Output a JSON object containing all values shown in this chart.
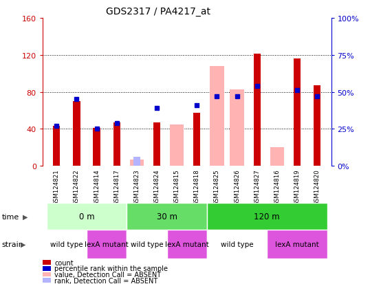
{
  "title": "GDS2317 / PA4217_at",
  "samples": [
    "GSM124821",
    "GSM124822",
    "GSM124814",
    "GSM124817",
    "GSM124823",
    "GSM124824",
    "GSM124815",
    "GSM124818",
    "GSM124825",
    "GSM124826",
    "GSM124827",
    "GSM124816",
    "GSM124819",
    "GSM124820"
  ],
  "count_values": [
    43,
    70,
    41,
    47,
    null,
    47,
    null,
    57,
    null,
    null,
    121,
    null,
    116,
    87
  ],
  "percentile_values": [
    27,
    45,
    25,
    29,
    null,
    39,
    null,
    41,
    47,
    47,
    54,
    null,
    51,
    47
  ],
  "absent_value_values": [
    null,
    null,
    null,
    null,
    7,
    null,
    45,
    null,
    108,
    83,
    null,
    20,
    null,
    null
  ],
  "absent_rank_values": [
    null,
    null,
    null,
    null,
    10,
    null,
    null,
    null,
    null,
    null,
    null,
    null,
    null,
    null
  ],
  "ylim_left": [
    0,
    160
  ],
  "ylim_right": [
    0,
    100
  ],
  "yticks_left": [
    0,
    40,
    80,
    120,
    160
  ],
  "yticks_left_labels": [
    "0",
    "40",
    "80",
    "120",
    "160"
  ],
  "yticks_right": [
    0,
    25,
    50,
    75,
    100
  ],
  "yticks_right_labels": [
    "0%",
    "25%",
    "50%",
    "75%",
    "100%"
  ],
  "color_count": "#cc0000",
  "color_percentile": "#0000cc",
  "color_absent_value": "#ffb3b3",
  "color_absent_rank": "#b3b3ff",
  "time_groups": [
    {
      "label": "0 m",
      "start": 0,
      "end": 4,
      "color": "#ccffcc"
    },
    {
      "label": "30 m",
      "start": 4,
      "end": 8,
      "color": "#66dd66"
    },
    {
      "label": "120 m",
      "start": 8,
      "end": 14,
      "color": "#33cc33"
    }
  ],
  "strain_groups": [
    {
      "label": "wild type",
      "start": 0,
      "end": 2,
      "color": "#ffffff"
    },
    {
      "label": "lexA mutant",
      "start": 2,
      "end": 4,
      "color": "#dd55dd"
    },
    {
      "label": "wild type",
      "start": 4,
      "end": 6,
      "color": "#ffffff"
    },
    {
      "label": "lexA mutant",
      "start": 6,
      "end": 8,
      "color": "#dd55dd"
    },
    {
      "label": "wild type",
      "start": 8,
      "end": 11,
      "color": "#ffffff"
    },
    {
      "label": "lexA mutant",
      "start": 11,
      "end": 14,
      "color": "#dd55dd"
    }
  ],
  "bg_color": "#cccccc",
  "plot_bg": "#ffffff",
  "bar_width": 0.35,
  "absent_bar_width": 0.7
}
